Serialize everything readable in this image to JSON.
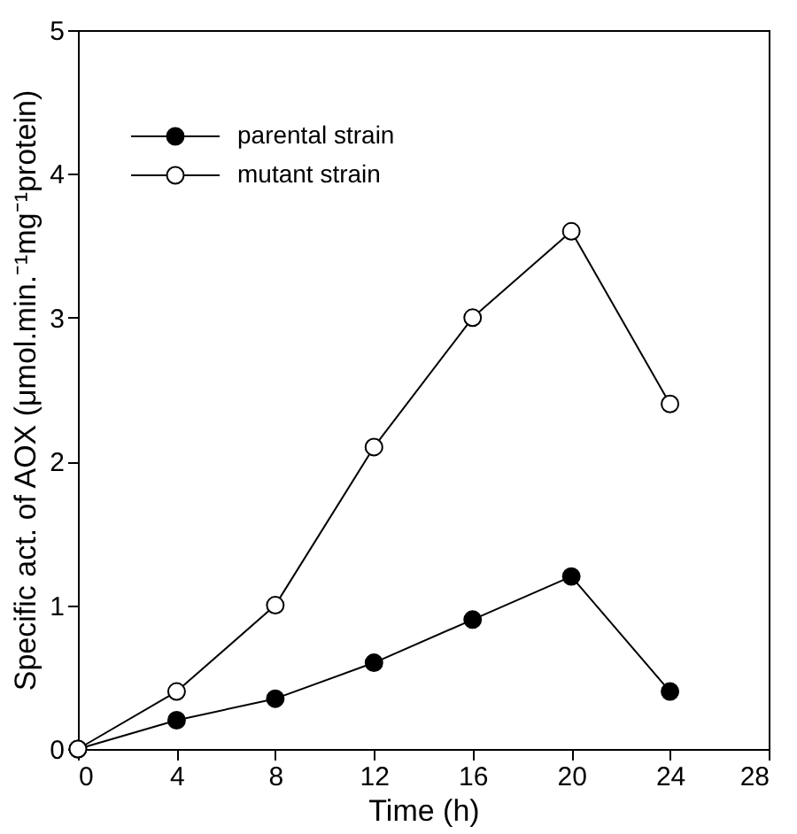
{
  "chart_data": {
    "type": "line",
    "xlabel": "Time (h)",
    "ylabel": "Specific act. of AOX (μmol.min.⁻¹mg⁻¹protein)",
    "x": [
      0,
      4,
      8,
      12,
      16,
      20,
      24
    ],
    "series": [
      {
        "name": "parental strain",
        "color": "#000000",
        "values": [
          0,
          0.2,
          0.35,
          0.6,
          0.9,
          1.2,
          0.4
        ]
      },
      {
        "name": "mutant strain",
        "color": "#000000",
        "values": [
          0,
          0.4,
          1.0,
          2.1,
          3.0,
          3.6,
          2.4
        ]
      }
    ],
    "xlim": [
      0,
      28
    ],
    "xticks": [
      0,
      4,
      8,
      12,
      16,
      20,
      24,
      28
    ],
    "ylim": [
      0,
      5
    ],
    "yticks": [
      0,
      1,
      2,
      3,
      4,
      5
    ],
    "grid": false,
    "legend": "top left",
    "marker": "circle",
    "line_style": "solid"
  }
}
